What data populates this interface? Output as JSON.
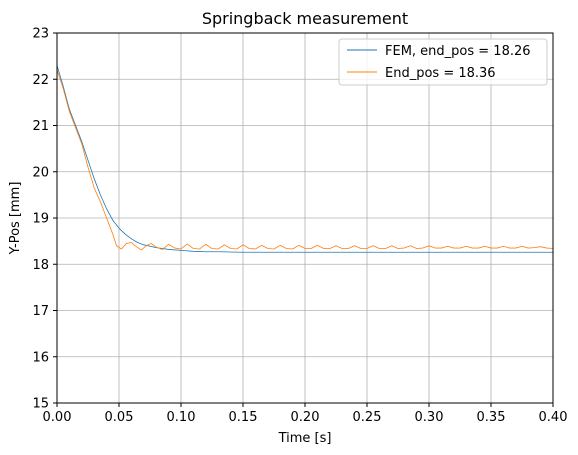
{
  "chart_data": {
    "type": "line",
    "title": "Springback measurement",
    "xlabel": "Time [s]",
    "ylabel": "Y-Pos [mm]",
    "xlim": [
      0.0,
      0.4
    ],
    "ylim": [
      15,
      23
    ],
    "xticks": [
      "0.00",
      "0.05",
      "0.10",
      "0.15",
      "0.20",
      "0.25",
      "0.30",
      "0.35",
      "0.40"
    ],
    "yticks": [
      "15",
      "16",
      "17",
      "18",
      "19",
      "20",
      "21",
      "22",
      "23"
    ],
    "grid": true,
    "legend_position": "top-right",
    "series": [
      {
        "name": "FEM, end_pos = 18.26",
        "color": "#1f77b4",
        "x": [
          0.0,
          0.005,
          0.01,
          0.015,
          0.02,
          0.025,
          0.03,
          0.035,
          0.04,
          0.045,
          0.05,
          0.055,
          0.06,
          0.065,
          0.07,
          0.08,
          0.09,
          0.1,
          0.11,
          0.12,
          0.13,
          0.15,
          0.2,
          0.25,
          0.3,
          0.35,
          0.4
        ],
        "y": [
          22.3,
          21.85,
          21.35,
          21.0,
          20.65,
          20.25,
          19.85,
          19.5,
          19.2,
          18.95,
          18.78,
          18.65,
          18.55,
          18.47,
          18.42,
          18.36,
          18.32,
          18.3,
          18.28,
          18.27,
          18.27,
          18.26,
          18.26,
          18.26,
          18.26,
          18.26,
          18.26
        ]
      },
      {
        "name": "End_pos = 18.36",
        "color": "#ff7f0e",
        "x": [
          0.0,
          0.005,
          0.01,
          0.015,
          0.02,
          0.025,
          0.03,
          0.035,
          0.04,
          0.045,
          0.048,
          0.052,
          0.056,
          0.06,
          0.064,
          0.068,
          0.072,
          0.076,
          0.08,
          0.085,
          0.09,
          0.095,
          0.1,
          0.105,
          0.11,
          0.115,
          0.12,
          0.125,
          0.13,
          0.135,
          0.14,
          0.145,
          0.15,
          0.155,
          0.16,
          0.165,
          0.17,
          0.175,
          0.18,
          0.185,
          0.19,
          0.195,
          0.2,
          0.205,
          0.21,
          0.215,
          0.22,
          0.225,
          0.23,
          0.235,
          0.24,
          0.245,
          0.25,
          0.255,
          0.26,
          0.265,
          0.27,
          0.275,
          0.28,
          0.285,
          0.29,
          0.295,
          0.3,
          0.305,
          0.31,
          0.315,
          0.32,
          0.325,
          0.33,
          0.335,
          0.34,
          0.345,
          0.35,
          0.355,
          0.36,
          0.365,
          0.37,
          0.375,
          0.38,
          0.385,
          0.39,
          0.395,
          0.4
        ],
        "y": [
          22.2,
          21.8,
          21.3,
          20.95,
          20.6,
          20.1,
          19.65,
          19.35,
          19.0,
          18.65,
          18.4,
          18.33,
          18.45,
          18.47,
          18.38,
          18.31,
          18.4,
          18.45,
          18.37,
          18.32,
          18.43,
          18.35,
          18.33,
          18.44,
          18.34,
          18.33,
          18.43,
          18.34,
          18.33,
          18.42,
          18.34,
          18.33,
          18.42,
          18.34,
          18.33,
          18.41,
          18.34,
          18.33,
          18.41,
          18.34,
          18.33,
          18.41,
          18.34,
          18.34,
          18.41,
          18.34,
          18.34,
          18.4,
          18.34,
          18.34,
          18.4,
          18.34,
          18.34,
          18.4,
          18.34,
          18.34,
          18.4,
          18.34,
          18.35,
          18.4,
          18.34,
          18.35,
          18.4,
          18.35,
          18.35,
          18.39,
          18.35,
          18.35,
          18.39,
          18.35,
          18.35,
          18.39,
          18.35,
          18.35,
          18.39,
          18.35,
          18.35,
          18.39,
          18.35,
          18.36,
          18.38,
          18.35,
          18.34
        ]
      }
    ]
  }
}
